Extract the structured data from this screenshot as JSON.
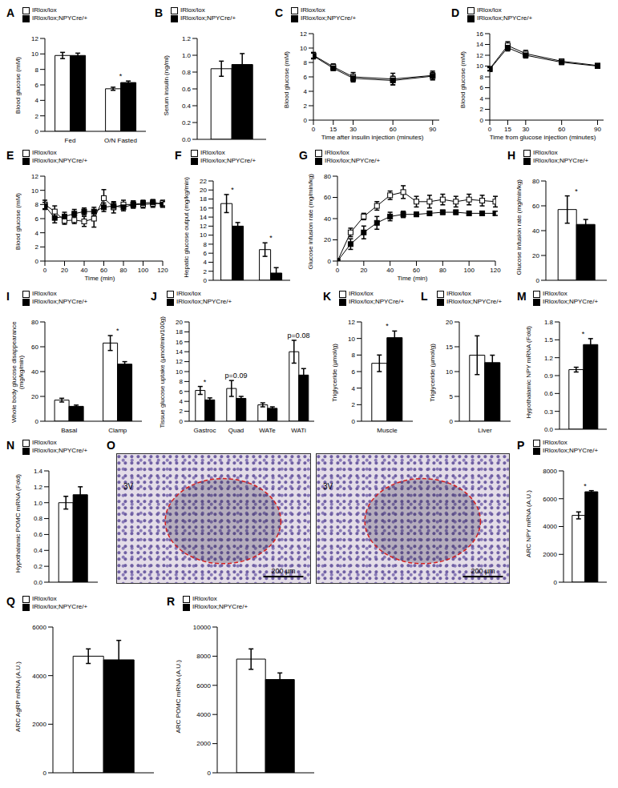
{
  "chart_data": [
    {
      "type": "bar",
      "title": "A",
      "categories": [
        "Fed",
        "O/N Fasted"
      ],
      "series": [
        {
          "name": "IRlox/lox",
          "color": "#ffffff",
          "values": [
            9.8,
            5.5
          ],
          "errors": [
            0.4,
            0.2
          ]
        },
        {
          "name": "IRlox/lox;NPYCre/+",
          "color": "#000000",
          "values": [
            9.8,
            6.3
          ],
          "errors": [
            0.3,
            0.2
          ]
        }
      ],
      "ylabel": "Blood glucose (mM)",
      "ylim": [
        0,
        12
      ],
      "yticks": [
        0,
        2,
        4,
        6,
        8,
        10,
        12
      ],
      "annotations": [
        null,
        "*"
      ]
    },
    {
      "type": "bar",
      "title": "B",
      "categories": [
        null
      ],
      "series": [
        {
          "name": "IRlox/lox",
          "color": "#ffffff",
          "values": [
            0.84
          ],
          "errors": [
            0.09
          ]
        },
        {
          "name": "IRlox/lox;NPYCre/+",
          "color": "#000000",
          "values": [
            0.89
          ],
          "errors": [
            0.13
          ]
        }
      ],
      "ylabel": "Serum insulin (ng/ml)",
      "ylim": [
        0,
        1.2
      ],
      "yticks": [
        {
          "value": 0,
          "label": "0.0"
        },
        0.2,
        0.4,
        0.6,
        0.8,
        {
          "value": 1,
          "label": "1.0"
        },
        1.2
      ]
    },
    {
      "type": "line",
      "title": "C",
      "x": [
        0,
        15,
        30,
        60,
        90
      ],
      "xlim": [
        0,
        95
      ],
      "xticks": [
        0,
        15,
        30,
        60,
        90
      ],
      "xlabel": "Time after insulin injection (minutes)",
      "ylabel": "Blood glucose (mM)",
      "ylim": [
        0,
        12
      ],
      "yticks": [
        0,
        2,
        4,
        6,
        8,
        10,
        12
      ],
      "marker": "square",
      "series": [
        {
          "name": "IRlox/lox",
          "color": "#ffffff",
          "values": [
            9.0,
            7.4,
            6.0,
            5.7,
            6.2
          ],
          "errors": [
            0.4,
            0.4,
            0.6,
            0.8,
            0.6
          ]
        },
        {
          "name": "IRlox/lox;NPYCre/+",
          "color": "#000000",
          "values": [
            8.9,
            7.2,
            5.8,
            5.5,
            6.1
          ],
          "errors": [
            0.4,
            0.3,
            0.5,
            0.6,
            0.5
          ]
        }
      ]
    },
    {
      "type": "line",
      "title": "D",
      "x": [
        0,
        15,
        30,
        60,
        90
      ],
      "xlim": [
        0,
        95
      ],
      "xticks": [
        0,
        15,
        30,
        60,
        90
      ],
      "xlabel": "Time from glucose injection (minutes)",
      "ylabel": "Blood glucose (mM)",
      "ylim": [
        0,
        16
      ],
      "yticks": [
        0,
        2,
        4,
        6,
        8,
        10,
        12,
        14,
        16
      ],
      "marker": "square",
      "series": [
        {
          "name": "IRlox/lox",
          "color": "#ffffff",
          "values": [
            9.5,
            13.8,
            12.3,
            10.9,
            10.1
          ],
          "errors": [
            0.3,
            0.7,
            0.6,
            0.4,
            0.3
          ]
        },
        {
          "name": "IRlox/lox;NPYCre/+",
          "color": "#000000",
          "values": [
            9.4,
            13.4,
            12.0,
            10.7,
            10.0
          ],
          "errors": [
            0.3,
            0.6,
            0.5,
            0.4,
            0.3
          ]
        }
      ]
    },
    {
      "type": "line",
      "title": "E",
      "x": [
        0,
        10,
        20,
        30,
        40,
        50,
        60,
        70,
        80,
        90,
        100,
        110,
        120
      ],
      "xlim": [
        0,
        120
      ],
      "xticks": [
        0,
        20,
        40,
        60,
        80,
        100,
        120
      ],
      "xlabel": "Time (min)",
      "ylabel": "Blood glucose (mM)",
      "ylim": [
        0,
        12
      ],
      "yticks": [
        0,
        2,
        4,
        6,
        8,
        10,
        12
      ],
      "marker": "square",
      "series": [
        {
          "name": "IRlox/lox",
          "color": "#ffffff",
          "values": [
            8.0,
            7.0,
            5.7,
            5.8,
            5.6,
            6.0,
            8.9,
            7.6,
            8.0,
            8.0,
            8.0,
            8.1,
            8.2
          ],
          "errors": [
            0.6,
            0.8,
            0.5,
            0.5,
            0.7,
            1.2,
            1.2,
            0.8,
            0.6,
            0.5,
            0.5,
            0.5,
            0.4
          ]
        },
        {
          "name": "IRlox/lox;NPYCre/+",
          "color": "#000000",
          "values": [
            7.8,
            6.1,
            6.3,
            6.7,
            7.0,
            7.0,
            7.6,
            7.8,
            7.6,
            8.0,
            8.2,
            8.3,
            8.0
          ],
          "errors": [
            0.5,
            0.7,
            0.6,
            0.6,
            0.5,
            0.6,
            0.6,
            0.5,
            0.5,
            0.5,
            0.4,
            0.4,
            0.4
          ]
        }
      ]
    },
    {
      "type": "bar",
      "title": "F",
      "categories": [
        null,
        null
      ],
      "series": [
        {
          "name": "IRlox/lox",
          "color": "#ffffff",
          "values": [
            17,
            6.8
          ],
          "errors": [
            2,
            1.5
          ]
        },
        {
          "name": "IRlox/lox;NPYCre/+",
          "color": "#000000",
          "values": [
            12,
            1.6
          ],
          "errors": [
            0.8,
            1.2
          ]
        }
      ],
      "ylabel": "Hepatic glucose output (mg/kg/min)",
      "ylim": [
        0,
        22
      ],
      "yticks": [
        0,
        2,
        4,
        6,
        8,
        10,
        12,
        14,
        16,
        18,
        20,
        22
      ],
      "annotations": [
        "*",
        "*"
      ]
    },
    {
      "type": "line",
      "title": "G",
      "x": [
        0,
        10,
        20,
        30,
        40,
        50,
        60,
        70,
        80,
        90,
        100,
        110,
        120
      ],
      "xlim": [
        0,
        120
      ],
      "xticks": [
        0,
        20,
        40,
        60,
        80,
        100,
        120
      ],
      "xlabel": "Time (min)",
      "ylabel": "Glucose infusion rate (mg/min/kg)",
      "ylim": [
        0,
        80
      ],
      "yticks": [
        0,
        20,
        40,
        60,
        80
      ],
      "marker": "square",
      "series": [
        {
          "name": "IRlox/lox",
          "color": "#ffffff",
          "values": [
            0,
            27,
            42,
            52,
            62,
            65,
            56,
            56,
            58,
            56,
            58,
            57,
            56
          ],
          "errors": [
            0,
            4,
            3,
            4,
            4,
            6,
            5,
            6,
            5,
            5,
            5,
            5,
            5
          ]
        },
        {
          "name": "IRlox/lox;NPYCre/+",
          "color": "#000000",
          "values": [
            0,
            16,
            27,
            36,
            42,
            44,
            44,
            45,
            46,
            46,
            45,
            45,
            45
          ],
          "errors": [
            0,
            5,
            6,
            6,
            4,
            3,
            2,
            2,
            2,
            2,
            2,
            2,
            2
          ]
        }
      ]
    },
    {
      "type": "bar",
      "title": "H",
      "categories": [
        null
      ],
      "series": [
        {
          "name": "IRlox/lox",
          "color": "#ffffff",
          "values": [
            57
          ],
          "errors": [
            11
          ]
        },
        {
          "name": "IRlox/lox;NPYCre/+",
          "color": "#000000",
          "values": [
            45
          ],
          "errors": [
            4
          ]
        }
      ],
      "ylabel": "Glucose infusion rate (mg/min/kg)",
      "ylim": [
        0,
        80
      ],
      "yticks": [
        0,
        20,
        40,
        60,
        80
      ],
      "annotations": [
        "*"
      ]
    },
    {
      "type": "bar",
      "title": "I",
      "categories": [
        "Basal",
        "Clamp"
      ],
      "series": [
        {
          "name": "IRlox/lox",
          "color": "#ffffff",
          "values": [
            17,
            63
          ],
          "errors": [
            1.5,
            6
          ]
        },
        {
          "name": "IRlox/lox;NPYCre/+",
          "color": "#000000",
          "values": [
            12,
            46
          ],
          "errors": [
            1,
            2
          ]
        }
      ],
      "ylabel": "Whole body glucose disappearance (mg/kg/min)",
      "ylim": [
        0,
        80
      ],
      "yticks": [
        0,
        20,
        40,
        60,
        80
      ],
      "annotations": [
        null,
        "*"
      ]
    },
    {
      "type": "bar",
      "title": "J",
      "categories": [
        "Gastroc",
        "Quad",
        "WATe",
        "WATi"
      ],
      "series": [
        {
          "name": "IRlox/lox",
          "color": "#ffffff",
          "values": [
            6.2,
            6.6,
            3.3,
            14.0
          ],
          "errors": [
            0.8,
            1.6,
            0.4,
            2.3
          ]
        },
        {
          "name": "IRlox/lox;NPYCre/+",
          "color": "#000000",
          "values": [
            4.3,
            4.6,
            2.6,
            9.3
          ],
          "errors": [
            0.4,
            0.4,
            0.3,
            1.3
          ]
        }
      ],
      "ylabel": "Tissue glucose uptake (µmol/min/100g)",
      "ylim": [
        0,
        20
      ],
      "yticks": [
        0,
        2,
        4,
        6,
        8,
        10,
        12,
        14,
        16,
        18,
        20
      ],
      "annotations": [
        "*",
        "p=0.09",
        null,
        "p=0.08"
      ]
    },
    {
      "type": "bar",
      "title": "K",
      "categories": [
        "Muscle"
      ],
      "series": [
        {
          "name": "IRlox/lox",
          "color": "#ffffff",
          "values": [
            7.0
          ],
          "errors": [
            1.0
          ]
        },
        {
          "name": "IRlox/lox;NPYCre/+",
          "color": "#000000",
          "values": [
            10.1
          ],
          "errors": [
            0.8
          ]
        }
      ],
      "ylabel": "Triglyceride (µmol/g)",
      "ylim": [
        0,
        12
      ],
      "yticks": [
        0,
        2,
        4,
        6,
        8,
        10,
        12
      ],
      "annotations": [
        "*"
      ]
    },
    {
      "type": "bar",
      "title": "L",
      "categories": [
        "Liver"
      ],
      "series": [
        {
          "name": "IRlox/lox",
          "color": "#ffffff",
          "values": [
            13.3
          ],
          "errors": [
            3.9
          ]
        },
        {
          "name": "IRlox/lox;NPYCre/+",
          "color": "#000000",
          "values": [
            11.8
          ],
          "errors": [
            1.5
          ]
        }
      ],
      "ylabel": "Triglyceride (µmol/g)",
      "ylim": [
        0,
        20
      ],
      "yticks": [
        0,
        5,
        10,
        15,
        20
      ]
    },
    {
      "type": "bar",
      "title": "M",
      "categories": [
        null
      ],
      "series": [
        {
          "name": "IRlox/lox",
          "color": "#ffffff",
          "values": [
            1.0
          ],
          "errors": [
            0.04
          ]
        },
        {
          "name": "IRlox/lox;NPYCre/+",
          "color": "#000000",
          "values": [
            1.42
          ],
          "errors": [
            0.1
          ]
        }
      ],
      "ylabel": "Hypothalamic NPY mRNA (Fold)",
      "ylim": [
        0,
        1.8
      ],
      "yticks": [
        {
          "value": 0,
          "label": "0.0"
        },
        0.3,
        0.6,
        0.9,
        1.2,
        1.5,
        1.8
      ],
      "annotations": [
        "*"
      ]
    },
    {
      "type": "bar",
      "title": "N",
      "categories": [
        null
      ],
      "series": [
        {
          "name": "IRlox/lox",
          "color": "#ffffff",
          "values": [
            1.0
          ],
          "errors": [
            0.08
          ]
        },
        {
          "name": "IRlox/lox;NPYCre/+",
          "color": "#000000",
          "values": [
            1.1
          ],
          "errors": [
            0.1
          ]
        }
      ],
      "ylabel": "Hypothalamic POMC mRNA (Fold)",
      "ylim": [
        0,
        1.4
      ],
      "yticks": [
        {
          "value": 0,
          "label": "0.0"
        },
        0.2,
        0.4,
        0.6,
        0.8,
        {
          "value": 1,
          "label": "1.0"
        },
        1.2,
        1.4
      ]
    },
    {
      "type": "bar",
      "title": "P",
      "categories": [
        null
      ],
      "series": [
        {
          "name": "IRlox/lox",
          "color": "#ffffff",
          "values": [
            4800
          ],
          "errors": [
            250
          ]
        },
        {
          "name": "IRlox/lox;NPYCre/+",
          "color": "#000000",
          "values": [
            6500
          ],
          "errors": [
            80
          ]
        }
      ],
      "ylabel": "ARC NPY mRNA (A.U.)",
      "ylim": [
        0,
        8000
      ],
      "yticks": [
        0,
        2000,
        4000,
        6000,
        8000
      ],
      "annotations": [
        "*"
      ]
    },
    {
      "type": "bar",
      "title": "Q",
      "categories": [
        null
      ],
      "series": [
        {
          "name": "IRlox/lox",
          "color": "#ffffff",
          "values": [
            4800
          ],
          "errors": [
            300
          ]
        },
        {
          "name": "IRlox/lox;NPYCre/+",
          "color": "#000000",
          "values": [
            4650
          ],
          "errors": [
            800
          ]
        }
      ],
      "ylabel": "ARC AgRP mRNA (A.U.)",
      "ylim": [
        0,
        6000
      ],
      "yticks": [
        0,
        2000,
        4000,
        6000
      ]
    },
    {
      "type": "bar",
      "title": "R",
      "categories": [
        null
      ],
      "series": [
        {
          "name": "IRlox/lox",
          "color": "#ffffff",
          "values": [
            7800
          ],
          "errors": [
            700
          ]
        },
        {
          "name": "IRlox/lox;NPYCre/+",
          "color": "#000000",
          "values": [
            6400
          ],
          "errors": [
            450
          ]
        }
      ],
      "ylabel": "ARC POMC mRNA (A.U.)",
      "ylim": [
        0,
        10000
      ],
      "yticks": [
        0,
        2000,
        4000,
        6000,
        8000,
        10000
      ]
    }
  ],
  "image_panel": {
    "title": "O",
    "images": [
      {
        "label": "3V",
        "scale_bar": "200 µm"
      },
      {
        "label": "3V",
        "scale_bar": "200 µm"
      }
    ]
  }
}
